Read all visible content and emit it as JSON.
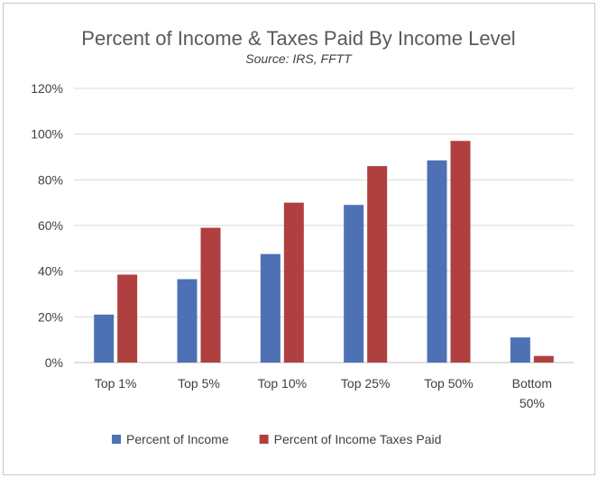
{
  "chart_data": {
    "type": "bar",
    "title": "Percent of Income & Taxes Paid By Income Level",
    "subtitle": "Source: IRS, FFTT",
    "categories": [
      [
        "Top 1%"
      ],
      [
        "Top 5%"
      ],
      [
        "Top 10%"
      ],
      [
        "Top 25%"
      ],
      [
        "Top 50%"
      ],
      [
        "Bottom",
        "50%"
      ]
    ],
    "series": [
      {
        "name": "Percent of Income",
        "color": "#4e71b6",
        "values": [
          21,
          36.5,
          47.5,
          69,
          88.5,
          11
        ]
      },
      {
        "name": "Percent of Income Taxes Paid",
        "color": "#b0403f",
        "values": [
          38.5,
          59,
          70,
          86,
          97,
          2.9
        ]
      }
    ],
    "ylim": [
      0,
      120
    ],
    "yticks": [
      "0%",
      "20%",
      "40%",
      "60%",
      "80%",
      "100%",
      "120%"
    ],
    "ytick_values": [
      0,
      20,
      40,
      60,
      80,
      100,
      120
    ],
    "grid": true,
    "legend_position": "bottom"
  }
}
